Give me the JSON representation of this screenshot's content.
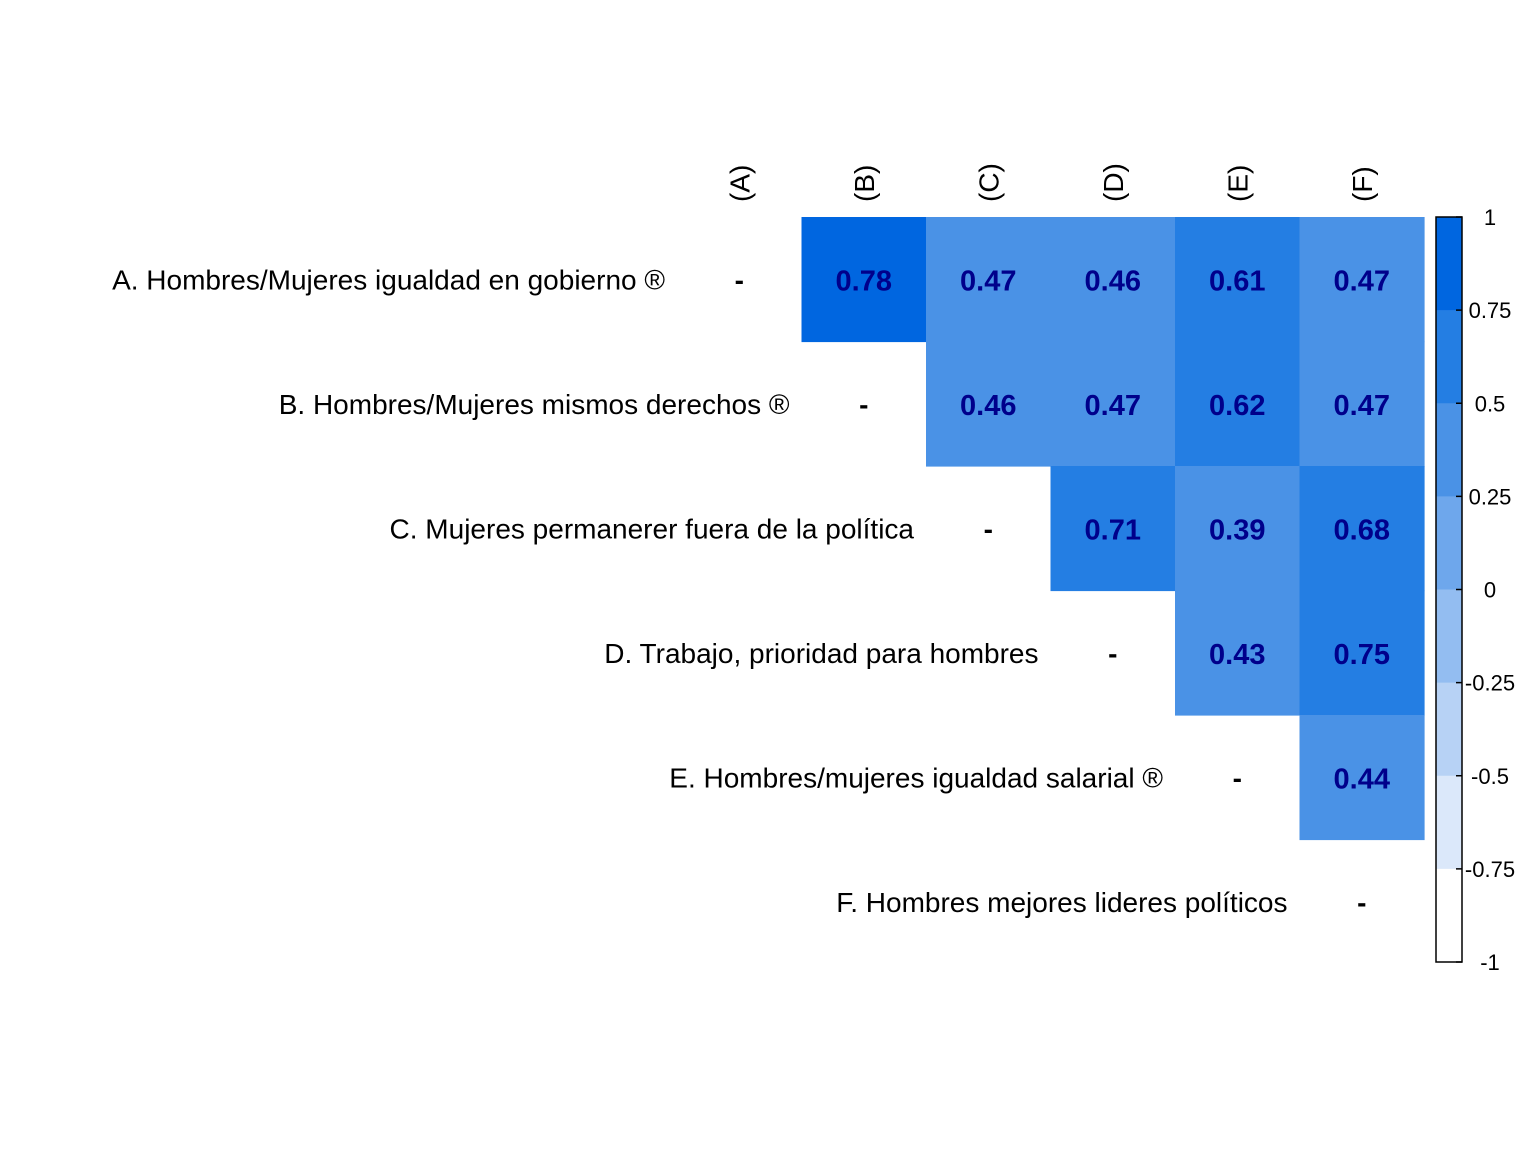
{
  "chart_data": {
    "type": "heatmap",
    "title": "",
    "subtitle": "",
    "row_labels": [
      "A. Hombres/Mujeres igualdad en gobierno ®",
      "B. Hombres/Mujeres mismos derechos ®",
      "C. Mujeres permanerer fuera de la política",
      "D. Trabajo, prioridad para hombres",
      "E. Hombres/mujeres igualdad salarial ®",
      "F. Hombres mejores lideres políticos"
    ],
    "col_labels": [
      "(A)",
      "(B)",
      "(C)",
      "(D)",
      "(E)",
      "(F)"
    ],
    "diagonal_text": "-",
    "values": [
      [
        null,
        0.78,
        0.47,
        0.46,
        0.61,
        0.47
      ],
      [
        null,
        null,
        0.46,
        0.47,
        0.62,
        0.47
      ],
      [
        null,
        null,
        null,
        0.71,
        0.39,
        0.68
      ],
      [
        null,
        null,
        null,
        null,
        0.43,
        0.75
      ],
      [
        null,
        null,
        null,
        null,
        null,
        0.44
      ],
      [
        null,
        null,
        null,
        null,
        null,
        null
      ]
    ],
    "value_labels": [
      [
        null,
        "0.78",
        "0.47",
        "0.46",
        "0.61",
        "0.47"
      ],
      [
        null,
        null,
        "0.46",
        "0.47",
        "0.62",
        "0.47"
      ],
      [
        null,
        null,
        null,
        "0.71",
        "0.39",
        "0.68"
      ],
      [
        null,
        null,
        null,
        null,
        "0.43",
        "0.75"
      ],
      [
        null,
        null,
        null,
        null,
        null,
        "0.44"
      ],
      [
        null,
        null,
        null,
        null,
        null,
        null
      ]
    ],
    "value_label_color": "#00008B",
    "colorbar": {
      "range": [
        -1,
        1
      ],
      "tick_labels": [
        "1",
        "0.75",
        "0.5",
        "0.25",
        "0",
        "-0.25",
        "-0.5",
        "-0.75",
        "-1"
      ],
      "tick_values": [
        1,
        0.75,
        0.5,
        0.25,
        0,
        -0.25,
        -0.5,
        -0.75,
        -1
      ],
      "bins": [
        {
          "from": 0.75,
          "to": 1.0,
          "color": "#0066E0"
        },
        {
          "from": 0.5,
          "to": 0.75,
          "color": "#247EE3"
        },
        {
          "from": 0.25,
          "to": 0.5,
          "color": "#4A92E6"
        },
        {
          "from": 0.0,
          "to": 0.25,
          "color": "#6EA7EC"
        },
        {
          "from": -0.25,
          "to": 0.0,
          "color": "#93BDF1"
        },
        {
          "from": -0.5,
          "to": -0.25,
          "color": "#B7D2F5"
        },
        {
          "from": -0.75,
          "to": -0.5,
          "color": "#DBE8FA"
        },
        {
          "from": -1.0,
          "to": -0.75,
          "color": "#FFFFFF"
        }
      ],
      "placement": "right"
    },
    "grid": false,
    "legend": "right"
  }
}
